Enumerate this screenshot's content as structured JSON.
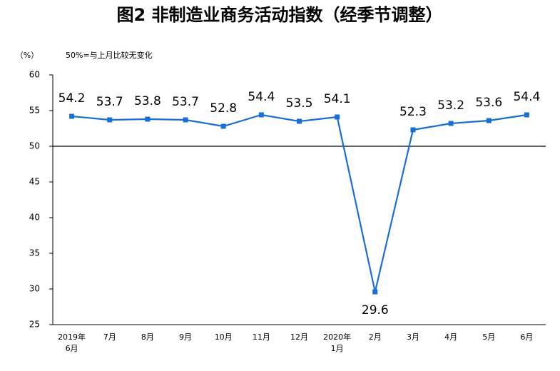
{
  "chart_data": {
    "type": "line",
    "title": "图2 非制造业商务活动指数（经季节调整）",
    "y_unit": "（%）",
    "annotation": "50%=与上月比较无变化",
    "categories": [
      "2019年\n6月",
      "7月",
      "8月",
      "9月",
      "10月",
      "11月",
      "12月",
      "2020年\n1月",
      "2月",
      "3月",
      "4月",
      "5月",
      "6月"
    ],
    "series": [
      {
        "color": "#1a6fd4",
        "values": [
          54.2,
          53.7,
          53.8,
          53.7,
          52.8,
          54.4,
          53.5,
          54.1,
          29.6,
          52.3,
          53.2,
          53.6,
          54.4
        ]
      }
    ],
    "ylim": [
      25,
      60
    ],
    "yticks": [
      25,
      30,
      35,
      40,
      45,
      50,
      55,
      60
    ],
    "reference_line": 50
  }
}
